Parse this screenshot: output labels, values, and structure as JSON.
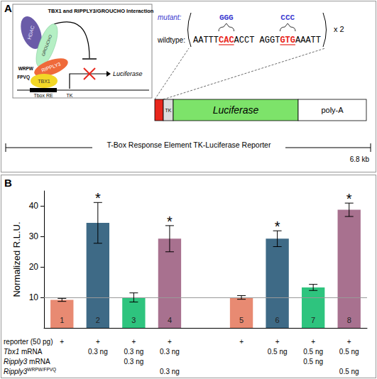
{
  "diagram": {
    "panel_label": "A",
    "inset": {
      "title": "TBX1 and RIPPLY3/GROUCHO Interaction",
      "proteins": {
        "hdac": "HDAC",
        "groucho": "GROUCHO",
        "ripply3": "RIPPLY3",
        "tbx1": "TBX1"
      },
      "motifs": {
        "ripply3": "WRPW",
        "tbx1": "FPVQ"
      },
      "elements": {
        "response_element": "Tbox RE",
        "promoter": "TK"
      },
      "reporter": "Luciferase"
    },
    "sequence": {
      "mutant_label": "mutant:",
      "wildtype_label": "wildtype:",
      "segments": [
        {
          "text": "AATTT"
        },
        {
          "text": "CAC",
          "mutant": "GGG"
        },
        {
          "text": "ACCT AGGT"
        },
        {
          "text": "GTG",
          "mutant": "CCC"
        },
        {
          "text": "AAATT"
        }
      ],
      "repeat": "x 2"
    },
    "construct": {
      "promoter": "TK",
      "gene": "Luciferase",
      "tail": "poly-A",
      "title": "T-Box Response Element TK-Luciferase Reporter",
      "size": "6.8 kb"
    }
  },
  "chart_data": {
    "type": "bar",
    "panel_label": "B",
    "ylabel": "Normalized R.L.U.",
    "categories": [
      "1",
      "2",
      "3",
      "4",
      null,
      "5",
      "6",
      "7",
      "8"
    ],
    "values": [
      9.2,
      34.5,
      10.0,
      29.3,
      null,
      10.0,
      29.3,
      13.3,
      38.8
    ],
    "errors": [
      0.5,
      6.7,
      1.5,
      4.3,
      null,
      0.6,
      2.6,
      1.0,
      2.2
    ],
    "significance": [
      null,
      "*",
      null,
      "*",
      null,
      null,
      "*",
      null,
      "*"
    ],
    "colors": [
      "#e88a72",
      "#3e6a86",
      "#2ec47e",
      "#a8718f",
      null,
      "#e88a72",
      "#3e6a86",
      "#2ec47e",
      "#a8718f"
    ],
    "reference_line": 10,
    "ylim": [
      0,
      45
    ],
    "yticks": [
      10,
      20,
      30,
      40
    ],
    "grid": false,
    "treatments": [
      {
        "label": "reporter (50 pg)",
        "values": [
          "+",
          "+",
          "+",
          "+",
          null,
          "+",
          "+",
          "+",
          "+"
        ]
      },
      {
        "label": "Tbx1 mRNA",
        "values": [
          null,
          "0.3 ng",
          "0.3 ng",
          "0.3 ng",
          null,
          null,
          "0.5 ng",
          "0.5 ng",
          "0.5 ng"
        ]
      },
      {
        "label": "Ripply3 mRNA",
        "values": [
          null,
          null,
          "0.3 ng",
          null,
          null,
          null,
          null,
          "0.5 ng",
          null
        ]
      },
      {
        "label": "Ripply3",
        "label_superscript": "WRPW/FPVQ",
        "values": [
          null,
          null,
          null,
          "0.3 ng",
          null,
          null,
          null,
          null,
          "0.5 ng"
        ]
      }
    ]
  }
}
